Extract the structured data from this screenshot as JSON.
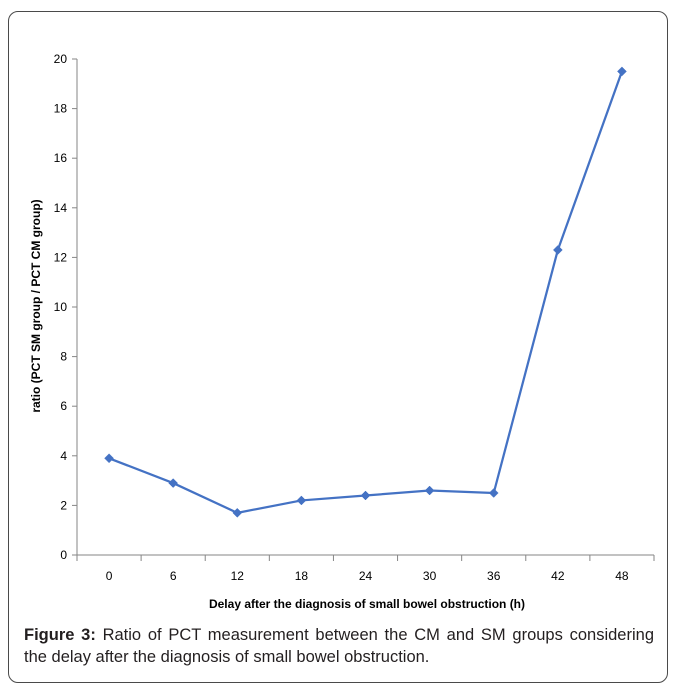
{
  "chart_data": {
    "type": "line",
    "title": "",
    "xlabel": "Delay after the diagnosis of small bowel obstruction (h)",
    "ylabel": "ratio (PCT SM group / PCT CM group)",
    "categories": [
      "0",
      "6",
      "12",
      "18",
      "24",
      "30",
      "36",
      "42",
      "48"
    ],
    "values": [
      3.9,
      2.9,
      1.7,
      2.2,
      2.4,
      2.6,
      2.5,
      12.3,
      19.5
    ],
    "ylim": [
      0,
      20
    ],
    "yticks": [
      0,
      2,
      4,
      6,
      8,
      10,
      12,
      14,
      16,
      18,
      20
    ],
    "grid": false,
    "legend": "none",
    "marker": "diamond",
    "series_color": "#4472c4"
  },
  "caption": {
    "label": "Figure 3:",
    "text": "Ratio of PCT measurement between the CM and SM groups considering the delay after the diagnosis of small bowel obstruction."
  }
}
